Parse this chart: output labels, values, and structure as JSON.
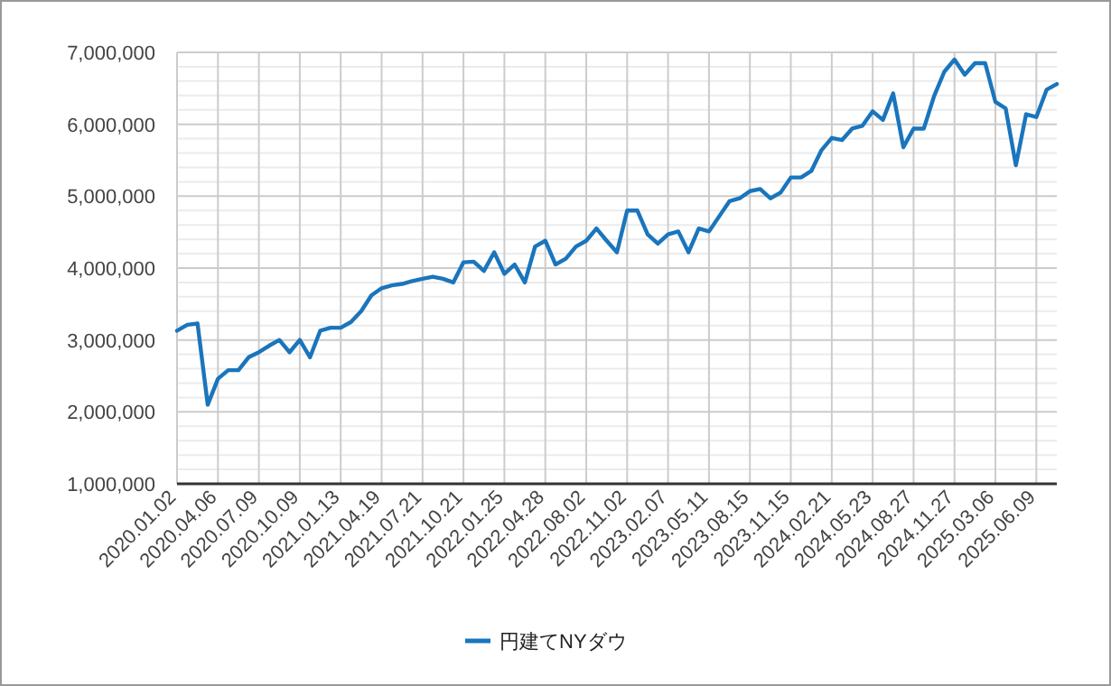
{
  "chart_data": {
    "type": "line",
    "categories": [
      "2020.01.02",
      null,
      null,
      null,
      "2020.04.06",
      null,
      null,
      null,
      "2020.07.09",
      null,
      null,
      null,
      "2020.10.09",
      null,
      null,
      null,
      "2021.01.13",
      null,
      null,
      null,
      "2021.04.19",
      null,
      null,
      null,
      "2021.07.21",
      null,
      null,
      null,
      "2021.10.21",
      null,
      null,
      null,
      "2022.01.25",
      null,
      null,
      null,
      "2022.04.28",
      null,
      null,
      null,
      "2022.08.02",
      null,
      null,
      null,
      "2022.11.02",
      null,
      null,
      null,
      "2023.02.07",
      null,
      null,
      null,
      "2023.05.11",
      null,
      null,
      null,
      "2023.08.15",
      null,
      null,
      null,
      "2023.11.15",
      null,
      null,
      null,
      "2024.02.21",
      null,
      null,
      null,
      "2024.05.23",
      null,
      null,
      null,
      "2024.08.27",
      null,
      null,
      null,
      "2024.11.27",
      null,
      null,
      null,
      "2025.03.06",
      null,
      null,
      null,
      "2025.06.09",
      null,
      null
    ],
    "series": [
      {
        "name": "円建てNYダウ",
        "color": "#1a75bc",
        "values": [
          3130000,
          3210000,
          3230000,
          2100000,
          2460000,
          2580000,
          2580000,
          2760000,
          2830000,
          2920000,
          3000000,
          2830000,
          3000000,
          2760000,
          3130000,
          3170000,
          3170000,
          3250000,
          3400000,
          3620000,
          3720000,
          3760000,
          3780000,
          3820000,
          3850000,
          3880000,
          3850000,
          3800000,
          4080000,
          4090000,
          3960000,
          4220000,
          3920000,
          4050000,
          3800000,
          4300000,
          4380000,
          4050000,
          4130000,
          4300000,
          4380000,
          4550000,
          4380000,
          4220000,
          4800000,
          4800000,
          4470000,
          4340000,
          4470000,
          4510000,
          4220000,
          4550000,
          4510000,
          4720000,
          4930000,
          4970000,
          5070000,
          5100000,
          4970000,
          5050000,
          5260000,
          5260000,
          5350000,
          5640000,
          5810000,
          5780000,
          5940000,
          5980000,
          6180000,
          6060000,
          6430000,
          5680000,
          5940000,
          5940000,
          6390000,
          6730000,
          6900000,
          6690000,
          6850000,
          6850000,
          6310000,
          6220000,
          5430000,
          6140000,
          6100000,
          6480000,
          6560000
        ]
      }
    ],
    "ylim": [
      1000000,
      7000000
    ],
    "yticks": [
      {
        "value": 1000000,
        "label": "1,000,000"
      },
      {
        "value": 1200000,
        "label": null
      },
      {
        "value": 1400000,
        "label": null
      },
      {
        "value": 1600000,
        "label": null
      },
      {
        "value": 1800000,
        "label": null
      },
      {
        "value": 2000000,
        "label": "2,000,000"
      },
      {
        "value": 2200000,
        "label": null
      },
      {
        "value": 2400000,
        "label": null
      },
      {
        "value": 2600000,
        "label": null
      },
      {
        "value": 2800000,
        "label": null
      },
      {
        "value": 3000000,
        "label": "3,000,000"
      },
      {
        "value": 3200000,
        "label": null
      },
      {
        "value": 3400000,
        "label": null
      },
      {
        "value": 3600000,
        "label": null
      },
      {
        "value": 3800000,
        "label": null
      },
      {
        "value": 4000000,
        "label": "4,000,000"
      },
      {
        "value": 4200000,
        "label": null
      },
      {
        "value": 4400000,
        "label": null
      },
      {
        "value": 4600000,
        "label": null
      },
      {
        "value": 4800000,
        "label": null
      },
      {
        "value": 5000000,
        "label": "5,000,000"
      },
      {
        "value": 5200000,
        "label": null
      },
      {
        "value": 5400000,
        "label": null
      },
      {
        "value": 5600000,
        "label": null
      },
      {
        "value": 5800000,
        "label": null
      },
      {
        "value": 6000000,
        "label": "6,000,000"
      },
      {
        "value": 6200000,
        "label": null
      },
      {
        "value": 6400000,
        "label": null
      },
      {
        "value": 6600000,
        "label": null
      },
      {
        "value": 6800000,
        "label": null
      },
      {
        "value": 7000000,
        "label": "7,000,000"
      }
    ],
    "grid": true,
    "legend": "bottom",
    "marker": "none",
    "line_style": "solid"
  }
}
